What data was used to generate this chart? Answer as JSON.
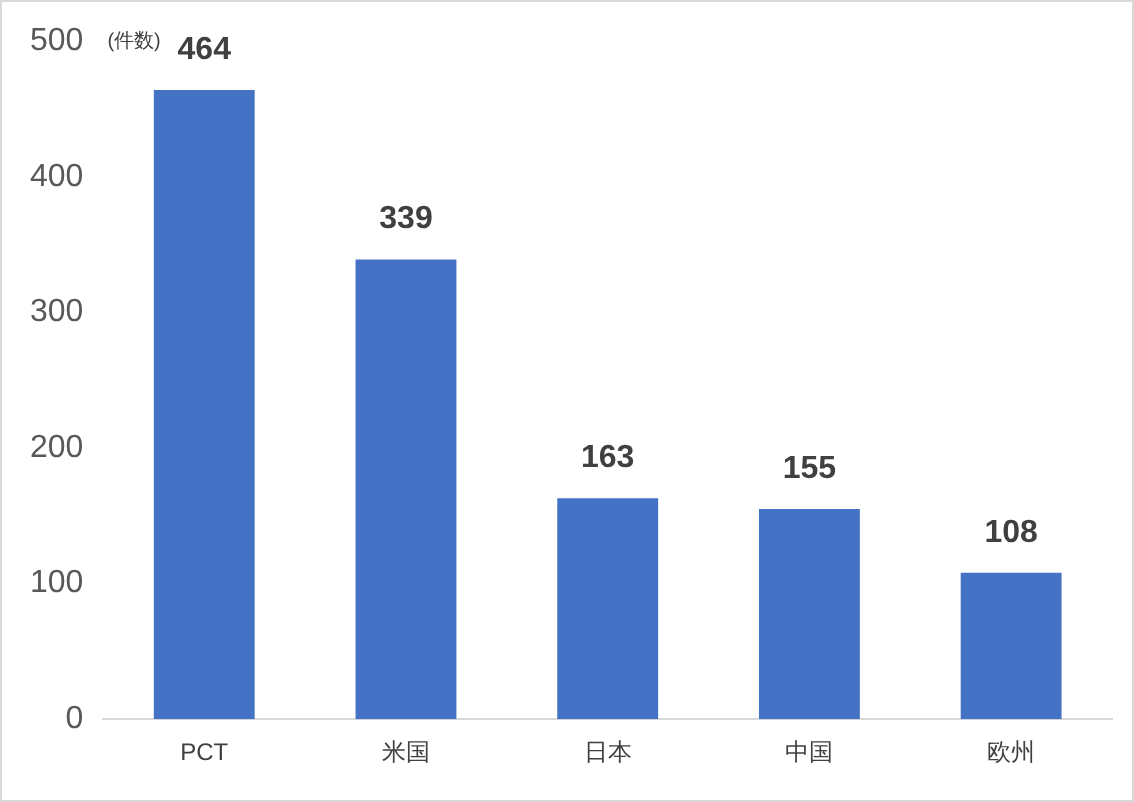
{
  "chart_data": {
    "type": "bar",
    "ylabel": "(件数)",
    "categories": [
      "PCT",
      "米国",
      "日本",
      "中国",
      "欧州"
    ],
    "values": [
      464,
      339,
      163,
      155,
      108
    ],
    "color": "#4472c4",
    "ylim": [
      0,
      500
    ],
    "yticks": [
      0,
      100,
      200,
      300,
      400,
      500
    ],
    "grid": false,
    "legend": false,
    "data_labels": true
  }
}
